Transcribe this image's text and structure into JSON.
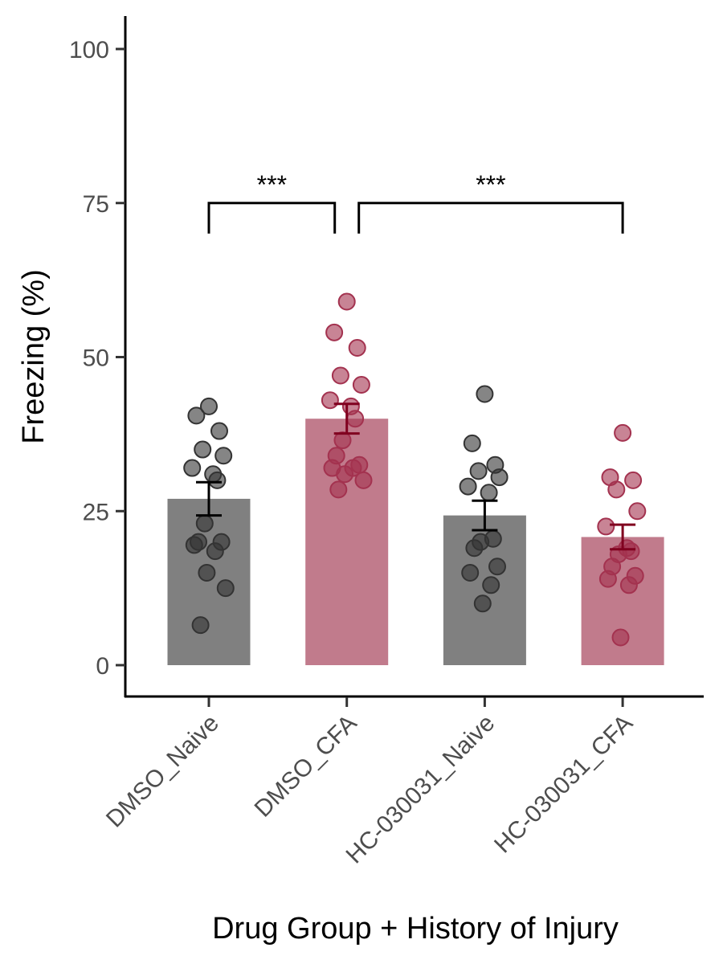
{
  "chart_data": {
    "type": "bar",
    "title": "",
    "xlabel": "Drug Group + History of Injury",
    "ylabel": "Freezing (%)",
    "ylim": [
      -5,
      105
    ],
    "yticks": [
      0,
      25,
      50,
      75,
      100
    ],
    "grid": false,
    "categories": [
      "DMSO_Naive",
      "DMSO_CFA",
      "HC-030031_Naive",
      "HC-030031_CFA"
    ],
    "colors": [
      "#808080",
      "#C17B8C",
      "#808080",
      "#C17B8C"
    ],
    "point_colors": [
      "#333333",
      "#A3324F",
      "#333333",
      "#A3324F"
    ],
    "errorbar_colors": [
      "#000000",
      "#80001F",
      "#000000",
      "#80001F"
    ],
    "values": [
      27.0,
      40.0,
      24.3,
      20.8
    ],
    "errors": [
      2.7,
      2.4,
      2.4,
      2.0
    ],
    "points": [
      [
        42,
        40.5,
        38,
        35,
        34,
        32,
        31,
        30,
        23,
        20,
        20,
        19.5,
        18.5,
        15,
        12.5,
        6.5
      ],
      [
        59,
        54,
        51.5,
        47,
        45.5,
        43,
        42,
        40,
        36.5,
        34,
        32.5,
        32,
        32,
        31,
        30,
        28.5
      ],
      [
        44,
        36,
        32.5,
        31.5,
        30.5,
        29,
        28,
        20.5,
        20,
        19,
        16,
        15,
        13,
        10
      ],
      [
        37.7,
        30.5,
        30,
        28.5,
        25,
        22.5,
        19,
        18.5,
        18,
        16,
        14.5,
        14,
        13,
        4.5
      ]
    ],
    "significance": [
      {
        "from": 0,
        "to": 1,
        "label": "***",
        "y": 75
      },
      {
        "from": 1,
        "to": 3,
        "label": "***",
        "y": 75
      }
    ]
  }
}
